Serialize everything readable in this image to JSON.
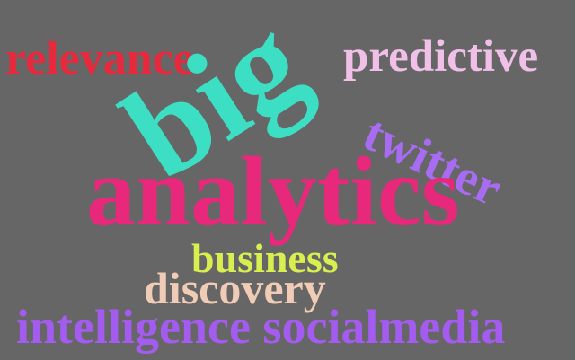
{
  "background_color": "#666666",
  "words": {
    "relevance": {
      "text": "relevance",
      "color": "#e8283c"
    },
    "predictive": {
      "text": "predictive",
      "color": "#f0c0e8"
    },
    "big": {
      "text": "big",
      "color": "#3ddfc4"
    },
    "twitter": {
      "text": "twitter",
      "color": "#a76cf2"
    },
    "analytics": {
      "text": "analytics",
      "color": "#e8287a"
    },
    "business": {
      "text": "business",
      "color": "#d9ef50"
    },
    "discovery": {
      "text": "discovery",
      "color": "#f0cbb5"
    },
    "intelligence_socialmedia": {
      "text": "intelligence socialmedia",
      "color": "#a45cf0"
    }
  }
}
